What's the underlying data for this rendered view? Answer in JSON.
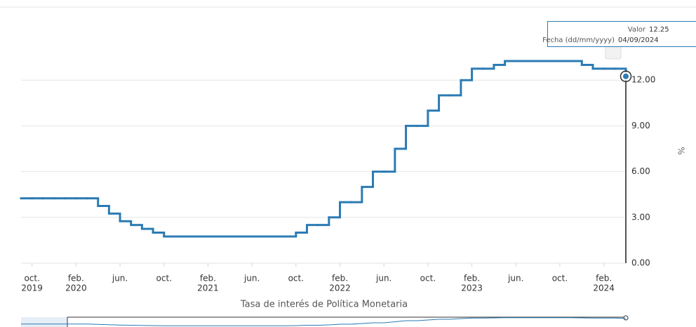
{
  "chart_data": {
    "type": "line",
    "x_axis_title": "Tasa de interés de Política Monetaria",
    "y_axis_title": "%",
    "x": [
      "2019-09",
      "2019-10",
      "2019-11",
      "2019-12",
      "2020-01",
      "2020-02",
      "2020-03",
      "2020-04",
      "2020-05",
      "2020-06",
      "2020-07",
      "2020-08",
      "2020-09",
      "2020-10",
      "2020-11",
      "2020-12",
      "2021-01",
      "2021-02",
      "2021-03",
      "2021-04",
      "2021-05",
      "2021-06",
      "2021-07",
      "2021-08",
      "2021-09",
      "2021-10",
      "2021-11",
      "2021-12",
      "2022-01",
      "2022-02",
      "2022-03",
      "2022-04",
      "2022-05",
      "2022-06",
      "2022-07",
      "2022-08",
      "2022-09",
      "2022-10",
      "2022-11",
      "2022-12",
      "2023-01",
      "2023-02",
      "2023-03",
      "2023-04",
      "2023-05",
      "2023-06",
      "2023-07",
      "2023-08",
      "2023-09",
      "2023-10",
      "2023-11",
      "2023-12",
      "2024-01",
      "2024-02",
      "2024-03",
      "2024-04"
    ],
    "series": [
      {
        "name": "Tasa de interés de Política Monetaria",
        "color": "#2b7bb4",
        "values": [
          4.25,
          4.25,
          4.25,
          4.25,
          4.25,
          4.25,
          4.25,
          3.75,
          3.25,
          2.75,
          2.5,
          2.25,
          2.0,
          1.75,
          1.75,
          1.75,
          1.75,
          1.75,
          1.75,
          1.75,
          1.75,
          1.75,
          1.75,
          1.75,
          1.75,
          2.0,
          2.5,
          2.5,
          3.0,
          4.0,
          4.0,
          5.0,
          6.0,
          6.0,
          7.5,
          9.0,
          9.0,
          10.0,
          11.0,
          11.0,
          12.0,
          12.75,
          12.75,
          13.0,
          13.25,
          13.25,
          13.25,
          13.25,
          13.25,
          13.25,
          13.25,
          13.0,
          12.75,
          12.75,
          12.75,
          12.25
        ]
      }
    ],
    "step": true,
    "ylim": [
      0,
      15
    ],
    "yticks": [
      {
        "value": 0,
        "label": "0.00"
      },
      {
        "value": 3,
        "label": "3.00"
      },
      {
        "value": 6,
        "label": "6.00"
      },
      {
        "value": 9,
        "label": "9.00"
      },
      {
        "value": 12,
        "label": "12.00"
      }
    ],
    "grid": true,
    "xticks": [
      {
        "value": "2019-10",
        "label": "oct."
      },
      {
        "value": "2020-02",
        "label": "feb."
      },
      {
        "value": "2020-06",
        "label": "jun."
      },
      {
        "value": "2020-10",
        "label": "oct."
      },
      {
        "value": "2021-02",
        "label": "feb."
      },
      {
        "value": "2021-06",
        "label": "jun."
      },
      {
        "value": "2021-10",
        "label": "oct."
      },
      {
        "value": "2022-02",
        "label": "feb."
      },
      {
        "value": "2022-06",
        "label": "jun."
      },
      {
        "value": "2022-10",
        "label": "oct."
      },
      {
        "value": "2023-02",
        "label": "feb."
      },
      {
        "value": "2023-06",
        "label": "jun."
      },
      {
        "value": "2023-10",
        "label": "oct."
      },
      {
        "value": "2024-02",
        "label": "feb."
      }
    ],
    "x_year_labels": [
      {
        "value": "2019-10",
        "label": "2019"
      },
      {
        "value": "2020-02",
        "label": "2020"
      },
      {
        "value": "2021-02",
        "label": "2021"
      },
      {
        "value": "2022-02",
        "label": "2022"
      },
      {
        "value": "2023-02",
        "label": "2023"
      },
      {
        "value": "2024-02",
        "label": "2024"
      }
    ],
    "tooltip": {
      "value_label": "Valor",
      "value": 12.25,
      "date_label": "Fecha (dd/mm/yyyy)",
      "date": "04/09/2024"
    }
  }
}
